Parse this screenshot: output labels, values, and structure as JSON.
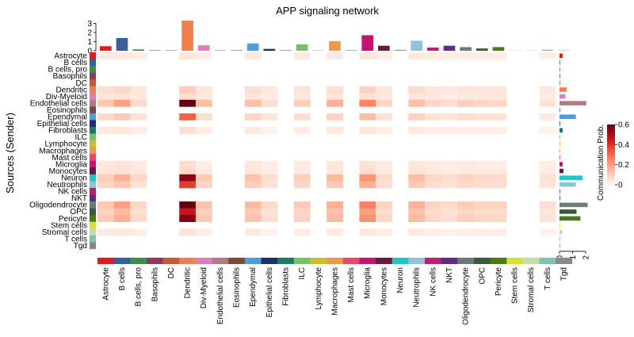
{
  "chart_data": {
    "type": "heatmap",
    "title": "APP signaling network",
    "ylabel": "Sources (Sender)",
    "xlabel": "",
    "rows": [
      "Astrocyte",
      "B cells",
      "B cells, pro",
      "Basophils",
      "DC",
      "Dendritic",
      "Div-Myeloid",
      "Endothelial cells",
      "Eosinophils",
      "Ependymal",
      "Epithelial cells",
      "Fibroblasts",
      "ILC",
      "Lymphocyte",
      "Macrophages",
      "Mast cells",
      "Microglia",
      "Monocytes",
      "Neuron",
      "Neutrophils",
      "NK cells",
      "NKT",
      "Oligodendrocyte",
      "OPC",
      "Pericyte",
      "Stem cells",
      "Stromal cells",
      "T cells",
      "Tgd"
    ],
    "columns": [
      "Astrocyte",
      "B cells",
      "B cells, pro",
      "Basophils",
      "DC",
      "Dendritic",
      "Div-Myeloid",
      "Endothelial cells",
      "Eosinophils",
      "Ependymal",
      "Epithelial cells",
      "Fibroblasts",
      "ILC",
      "Lymphocyte",
      "Macrophages",
      "Mast cells",
      "Microglia",
      "Monocytes",
      "Neuron",
      "Neutrophils",
      "NK cells",
      "NKT",
      "Oligodendrocyte",
      "OPC",
      "Pericyte",
      "Stem cells",
      "Stromal cells",
      "T cells",
      "Tgd"
    ],
    "cell_colors": [
      "#e41a1c",
      "#3a5f9b",
      "#3a8f4f",
      "#8b3a62",
      "#c8583c",
      "#f07f4d",
      "#e07bbe",
      "#b07a84",
      "#7b4a39",
      "#4b9de0",
      "#1f2f6e",
      "#1f7a63",
      "#78c06a",
      "#c8c030",
      "#ea9a4a",
      "#f0436f",
      "#c81270",
      "#6b1a3f",
      "#22c4c8",
      "#91c2dc",
      "#c0206a",
      "#5e2e86",
      "#6b7b78",
      "#3a5a3a",
      "#4a7a1a",
      "#d8e030",
      "#c0e0a8",
      "#7ec2b4",
      "#888888"
    ],
    "values": [
      [
        0.03,
        0.03,
        0.02,
        0,
        0,
        0.04,
        0.02,
        0,
        0,
        0.03,
        0,
        0,
        0.03,
        0,
        0.03,
        0,
        0.04,
        0.02,
        0,
        0.03,
        0.02,
        0.02,
        0.02,
        0.02,
        0.02,
        0,
        0,
        0.02,
        0
      ],
      [
        0,
        0,
        0,
        0,
        0,
        0,
        0,
        0,
        0,
        0,
        0,
        0,
        0,
        0,
        0,
        0,
        0,
        0,
        0,
        0,
        0,
        0,
        0,
        0,
        0,
        0,
        0,
        0,
        0
      ],
      [
        0,
        0,
        0,
        0,
        0,
        0,
        0,
        0,
        0,
        0,
        0,
        0,
        0,
        0,
        0,
        0,
        0,
        0,
        0,
        0,
        0,
        0,
        0,
        0,
        0,
        0,
        0,
        0,
        0
      ],
      [
        0,
        0,
        0,
        0,
        0,
        0,
        0,
        0,
        0,
        0,
        0,
        0,
        0,
        0,
        0,
        0,
        0,
        0,
        0,
        0,
        0,
        0,
        0,
        0,
        0,
        0,
        0,
        0,
        0
      ],
      [
        0,
        0,
        0,
        0,
        0,
        0,
        0,
        0,
        0,
        0,
        0,
        0,
        0,
        0,
        0,
        0,
        0,
        0,
        0,
        0,
        0,
        0,
        0,
        0,
        0,
        0,
        0,
        0,
        0
      ],
      [
        0.06,
        0.08,
        0.04,
        0,
        0,
        0.1,
        0.04,
        0,
        0,
        0.06,
        0.03,
        0,
        0.05,
        0,
        0.06,
        0,
        0.09,
        0.04,
        0,
        0.07,
        0.04,
        0.03,
        0.05,
        0.04,
        0.04,
        0,
        0,
        0.03,
        0
      ],
      [
        0.04,
        0.05,
        0.03,
        0,
        0,
        0.06,
        0.03,
        0,
        0,
        0.04,
        0.02,
        0,
        0.03,
        0,
        0.04,
        0,
        0.05,
        0.03,
        0,
        0.04,
        0.03,
        0.02,
        0.03,
        0.03,
        0.03,
        0,
        0,
        0.02,
        0
      ],
      [
        0.12,
        0.2,
        0.07,
        0,
        0,
        0.6,
        0.14,
        0,
        0,
        0.14,
        0.06,
        0,
        0.1,
        0,
        0.17,
        0,
        0.25,
        0.08,
        0,
        0.14,
        0.08,
        0.06,
        0.1,
        0.08,
        0.08,
        0,
        0,
        0.05,
        0
      ],
      [
        0,
        0,
        0,
        0,
        0,
        0,
        0,
        0,
        0,
        0,
        0,
        0,
        0,
        0,
        0,
        0,
        0,
        0,
        0,
        0,
        0,
        0,
        0,
        0,
        0,
        0,
        0,
        0,
        0
      ],
      [
        0.07,
        0.11,
        0.05,
        0,
        0,
        0.32,
        0.06,
        0,
        0,
        0.08,
        0.04,
        0,
        0.06,
        0,
        0.09,
        0,
        0.14,
        0.05,
        0,
        0.09,
        0.05,
        0.04,
        0.06,
        0.05,
        0.05,
        0,
        0,
        0.03,
        0
      ],
      [
        0,
        0,
        0,
        0,
        0,
        0,
        0,
        0,
        0,
        0,
        0,
        0,
        0,
        0,
        0,
        0,
        0,
        0,
        0,
        0,
        0,
        0,
        0,
        0,
        0,
        0,
        0,
        0,
        0
      ],
      [
        0.03,
        0.04,
        0.02,
        0,
        0,
        0.06,
        0.02,
        0,
        0,
        0.03,
        0.01,
        0,
        0.02,
        0,
        0.03,
        0,
        0.04,
        0.02,
        0,
        0.03,
        0.02,
        0.02,
        0.02,
        0.02,
        0.02,
        0,
        0,
        0.01,
        0
      ],
      [
        0,
        0,
        0,
        0,
        0,
        0,
        0,
        0,
        0,
        0,
        0,
        0,
        0,
        0,
        0,
        0,
        0,
        0,
        0,
        0,
        0,
        0,
        0,
        0,
        0,
        0,
        0,
        0,
        0
      ],
      [
        0,
        0,
        0,
        0,
        0,
        0,
        0,
        0,
        0,
        0,
        0,
        0,
        0,
        0,
        0,
        0,
        0,
        0,
        0,
        0,
        0,
        0,
        0,
        0,
        0,
        0,
        0,
        0,
        0
      ],
      [
        0,
        0,
        0,
        0,
        0,
        0,
        0,
        0,
        0,
        0,
        0,
        0,
        0,
        0,
        0,
        0,
        0,
        0,
        0,
        0,
        0,
        0,
        0,
        0,
        0,
        0,
        0,
        0,
        0
      ],
      [
        0,
        0,
        0,
        0,
        0,
        0,
        0,
        0,
        0,
        0,
        0,
        0,
        0,
        0,
        0,
        0,
        0,
        0,
        0,
        0,
        0,
        0,
        0,
        0,
        0,
        0,
        0,
        0,
        0
      ],
      [
        0.04,
        0.05,
        0.03,
        0,
        0,
        0.06,
        0.02,
        0,
        0,
        0.04,
        0.02,
        0,
        0.03,
        0,
        0.04,
        0,
        0.05,
        0.03,
        0,
        0.04,
        0.03,
        0.02,
        0.03,
        0.02,
        0.02,
        0,
        0,
        0.02,
        0
      ],
      [
        0.04,
        0.05,
        0.03,
        0,
        0,
        0.07,
        0.03,
        0,
        0,
        0.04,
        0.02,
        0,
        0.03,
        0,
        0.04,
        0,
        0.06,
        0.03,
        0,
        0.05,
        0.03,
        0.02,
        0.03,
        0.03,
        0.03,
        0,
        0,
        0.02,
        0
      ],
      [
        0.1,
        0.17,
        0.08,
        0,
        0,
        0.55,
        0.11,
        0,
        0,
        0.13,
        0.06,
        0,
        0.1,
        0,
        0.15,
        0,
        0.22,
        0.07,
        0,
        0.14,
        0.08,
        0.06,
        0.09,
        0.07,
        0.07,
        0,
        0,
        0.05,
        0
      ],
      [
        0.08,
        0.12,
        0.05,
        0,
        0,
        0.38,
        0.08,
        0,
        0,
        0.1,
        0.05,
        0,
        0.08,
        0,
        0.11,
        0,
        0.17,
        0.06,
        0,
        0.11,
        0.06,
        0.05,
        0.07,
        0.06,
        0.06,
        0,
        0,
        0.04,
        0
      ],
      [
        0,
        0,
        0,
        0,
        0,
        0,
        0,
        0,
        0,
        0,
        0,
        0,
        0,
        0,
        0,
        0,
        0,
        0,
        0,
        0,
        0,
        0,
        0,
        0,
        0,
        0,
        0,
        0,
        0
      ],
      [
        0,
        0,
        0,
        0,
        0,
        0,
        0,
        0,
        0,
        0,
        0,
        0,
        0,
        0,
        0,
        0,
        0,
        0,
        0,
        0,
        0,
        0,
        0,
        0,
        0,
        0,
        0,
        0,
        0
      ],
      [
        0.12,
        0.2,
        0.08,
        0,
        0,
        0.63,
        0.13,
        0,
        0,
        0.15,
        0.07,
        0,
        0.11,
        0,
        0.17,
        0,
        0.26,
        0.09,
        0,
        0.17,
        0.09,
        0.07,
        0.11,
        0.09,
        0.09,
        0,
        0,
        0.06,
        0
      ],
      [
        0.09,
        0.15,
        0.06,
        0,
        0,
        0.46,
        0.1,
        0,
        0,
        0.11,
        0.05,
        0,
        0.08,
        0,
        0.13,
        0,
        0.2,
        0.07,
        0,
        0.13,
        0.07,
        0.05,
        0.08,
        0.07,
        0.07,
        0,
        0,
        0.04,
        0
      ],
      [
        0.11,
        0.17,
        0.07,
        0,
        0,
        0.56,
        0.12,
        0,
        0,
        0.13,
        0.06,
        0,
        0.09,
        0,
        0.15,
        0,
        0.23,
        0.08,
        0,
        0.15,
        0.08,
        0.06,
        0.1,
        0.08,
        0.08,
        0,
        0,
        0.05,
        0
      ],
      [
        0,
        0,
        0,
        0,
        0,
        0,
        0,
        0,
        0,
        0,
        0,
        0,
        0,
        0,
        0,
        0,
        0,
        0,
        0,
        0,
        0,
        0,
        0,
        0,
        0,
        0,
        0,
        0,
        0
      ],
      [
        0.03,
        0.04,
        0.02,
        0,
        0,
        0.05,
        0.02,
        0,
        0,
        0.03,
        0.01,
        0,
        0.02,
        0,
        0.03,
        0,
        0.04,
        0.02,
        0,
        0.03,
        0.02,
        0.01,
        0.02,
        0.02,
        0.02,
        0,
        0,
        0.01,
        0
      ],
      [
        0,
        0,
        0,
        0,
        0,
        0,
        0,
        0,
        0,
        0,
        0,
        0,
        0,
        0,
        0,
        0,
        0,
        0,
        0,
        0,
        0,
        0,
        0,
        0,
        0,
        0,
        0,
        0,
        0
      ],
      [
        0,
        0,
        0,
        0,
        0,
        0,
        0,
        0,
        0,
        0,
        0,
        0,
        0,
        0,
        0,
        0,
        0,
        0,
        0,
        0,
        0,
        0,
        0,
        0,
        0,
        0,
        0,
        0,
        0
      ]
    ],
    "col_totals": [
      0.5,
      1.4,
      0.15,
      0.05,
      0.05,
      3.3,
      0.6,
      0.05,
      0.05,
      0.8,
      0.2,
      0.05,
      0.7,
      0.05,
      1.05,
      0.05,
      1.7,
      0.55,
      0.1,
      1.1,
      0.35,
      0.55,
      0.4,
      0.25,
      0.4,
      0.03,
      0.05,
      0.12,
      0.03
    ],
    "row_totals": [
      0.25,
      0,
      0,
      0,
      0,
      0.55,
      0.45,
      2.05,
      0,
      1.25,
      0,
      0.25,
      0,
      0,
      0,
      0,
      0.25,
      0.3,
      1.75,
      1.25,
      0.05,
      0.05,
      2.15,
      1.3,
      1.6,
      0.05,
      0.2,
      0.05,
      0.03
    ],
    "top_axis_ticks": [
      0,
      1,
      2,
      3
    ],
    "right_axis_ticks": [
      0,
      1,
      2
    ],
    "legend": {
      "title": "Communication Prob.",
      "ticks": [
        0,
        0.2,
        0.4,
        0.6
      ],
      "range": [
        0,
        0.6
      ],
      "colors": [
        "#fff5f0",
        "#fcbba1",
        "#fb6a4a",
        "#cb181d",
        "#67000d"
      ]
    }
  }
}
